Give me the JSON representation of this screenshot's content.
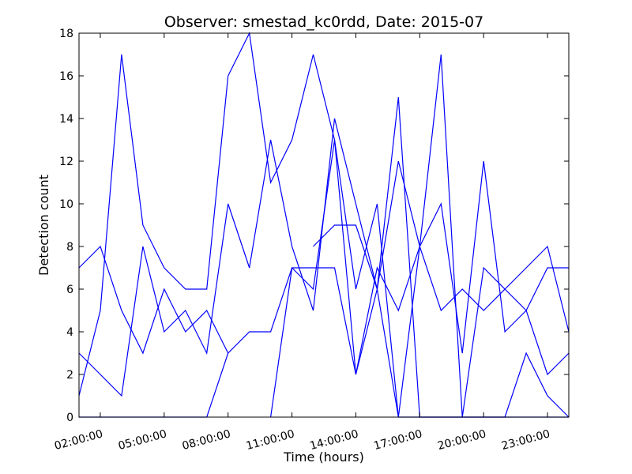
{
  "chart_data": {
    "type": "line",
    "title": "Observer: smestad_kc0rdd, Date: 2015-07",
    "xlabel": "Time (hours)",
    "ylabel": "Detection count",
    "xlim": [
      "01:00:00",
      "24:00:00"
    ],
    "ylim": [
      0,
      18
    ],
    "x_ticks": [
      "02:00:00",
      "05:00:00",
      "08:00:00",
      "11:00:00",
      "14:00:00",
      "17:00:00",
      "20:00:00",
      "23:00:00"
    ],
    "y_ticks": [
      0,
      2,
      4,
      6,
      8,
      10,
      12,
      14,
      16,
      18
    ],
    "grid": false,
    "line_color": "#0000ff",
    "series": [
      {
        "x": [
          "01:00:00",
          "02:00:00",
          "03:00:00",
          "04:00:00",
          "05:00:00",
          "06:00:00",
          "07:00:00",
          "08:00:00",
          "09:00:00",
          "10:00:00",
          "11:00:00",
          "12:00:00",
          "13:00:00",
          "14:00:00",
          "15:00:00",
          "16:00:00",
          "17:00:00",
          "18:00:00",
          "19:00:00",
          "20:00:00",
          "21:00:00",
          "22:00:00",
          "23:00:00",
          "24:00:00"
        ],
        "y": [
          7,
          8,
          5,
          3,
          6,
          4,
          5,
          3,
          4,
          4,
          7,
          7,
          7,
          2,
          7,
          5,
          8,
          5,
          6,
          5,
          6,
          5,
          7,
          7
        ]
      },
      {
        "x": [
          "01:00:00",
          "02:00:00",
          "03:00:00",
          "04:00:00",
          "05:00:00",
          "06:00:00",
          "07:00:00",
          "08:00:00",
          "09:00:00",
          "10:00:00",
          "11:00:00",
          "12:00:00",
          "13:00:00",
          "14:00:00",
          "15:00:00",
          "16:00:00",
          "17:00:00",
          "18:00:00",
          "19:00:00",
          "20:00:00",
          "21:00:00",
          "22:00:00",
          "23:00:00",
          "24:00:00"
        ],
        "y": [
          1,
          5,
          17,
          9,
          7,
          6,
          6,
          16,
          18,
          11,
          13,
          17,
          13,
          6,
          10,
          0,
          0,
          0,
          0,
          0,
          0,
          0,
          0,
          0
        ]
      },
      {
        "x": [
          "01:00:00",
          "02:00:00",
          "03:00:00",
          "04:00:00",
          "05:00:00",
          "06:00:00",
          "07:00:00",
          "08:00:00",
          "09:00:00",
          "10:00:00",
          "11:00:00",
          "12:00:00",
          "13:00:00",
          "14:00:00",
          "15:00:00",
          "16:00:00",
          "17:00:00",
          "18:00:00",
          "19:00:00",
          "20:00:00",
          "21:00:00",
          "22:00:00",
          "23:00:00",
          "24:00:00"
        ],
        "y": [
          3,
          2,
          1,
          8,
          4,
          5,
          3,
          10,
          7,
          13,
          8,
          5,
          14,
          10,
          6,
          15,
          0,
          0,
          0,
          0,
          0,
          3,
          1,
          0
        ]
      },
      {
        "x": [
          "01:00:00",
          "02:00:00",
          "03:00:00",
          "04:00:00",
          "05:00:00",
          "06:00:00",
          "07:00:00",
          "08:00:00",
          "09:00:00",
          "10:00:00",
          "11:00:00",
          "12:00:00",
          "13:00:00",
          "14:00:00",
          "15:00:00",
          "16:00:00",
          "17:00:00",
          "18:00:00",
          "19:00:00",
          "20:00:00",
          "21:00:00",
          "22:00:00",
          "23:00:00",
          "24:00:00"
        ],
        "y": [
          0,
          0,
          0,
          0,
          0,
          0,
          0,
          3,
          null,
          null,
          null,
          8,
          9,
          9,
          6,
          12,
          8,
          10,
          3,
          12,
          4,
          5,
          2,
          3
        ]
      },
      {
        "x": [
          "10:00:00",
          "11:00:00",
          "12:00:00",
          "13:00:00",
          "14:00:00",
          "15:00:00",
          "16:00:00",
          "17:00:00",
          "18:00:00",
          "19:00:00",
          "20:00:00",
          "21:00:00",
          "22:00:00",
          "23:00:00",
          "24:00:00"
        ],
        "y": [
          0,
          7,
          6,
          13,
          2,
          6,
          0,
          8,
          17,
          0,
          7,
          6,
          7,
          8,
          4
        ]
      }
    ]
  }
}
